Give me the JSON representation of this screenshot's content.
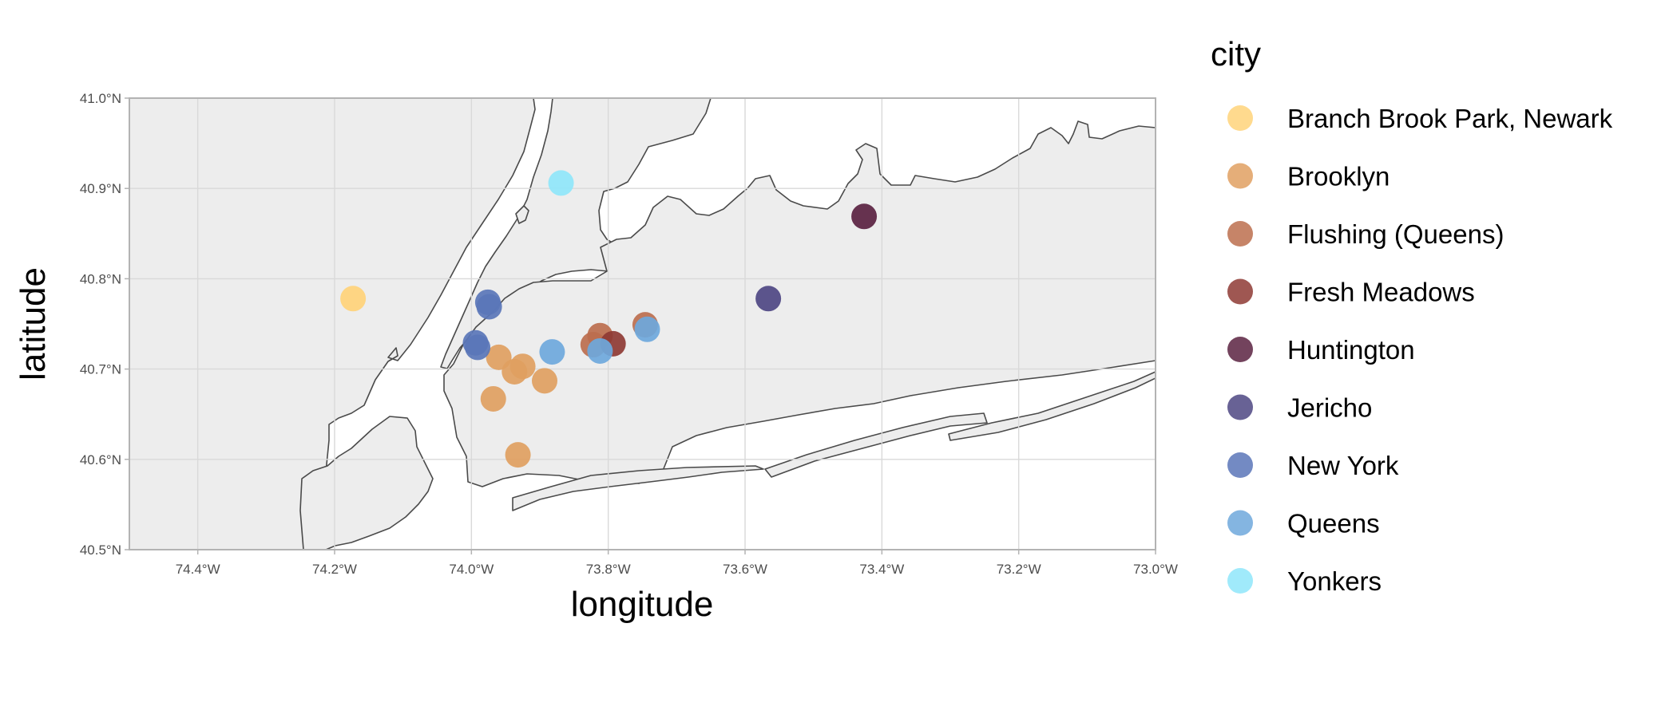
{
  "chart_data": {
    "type": "scatter",
    "xlabel": "longitude",
    "ylabel": "latitude",
    "xlim": [
      -74.5,
      -73.0
    ],
    "ylim": [
      40.5,
      41.0
    ],
    "x_ticks": [
      {
        "value": -74.4,
        "label": "74.4°W"
      },
      {
        "value": -74.2,
        "label": "74.2°W"
      },
      {
        "value": -74.0,
        "label": "74.0°W"
      },
      {
        "value": -73.8,
        "label": "73.8°W"
      },
      {
        "value": -73.6,
        "label": "73.6°W"
      },
      {
        "value": -73.4,
        "label": "73.4°W"
      },
      {
        "value": -73.2,
        "label": "73.2°W"
      },
      {
        "value": -73.0,
        "label": "73.0°W"
      }
    ],
    "y_ticks": [
      {
        "value": 41.0,
        "label": "41.0°N"
      },
      {
        "value": 40.9,
        "label": "40.9°N"
      },
      {
        "value": 40.8,
        "label": "40.8°N"
      },
      {
        "value": 40.7,
        "label": "40.7°N"
      },
      {
        "value": 40.6,
        "label": "40.6°N"
      },
      {
        "value": 40.5,
        "label": "40.5°N"
      }
    ],
    "grid": true,
    "legend": {
      "title": "city",
      "position": "right"
    },
    "series": [
      {
        "name": "Branch Brook Park, Newark",
        "color": "#FFD37A",
        "points": [
          {
            "x": -74.173,
            "y": 40.778
          }
        ]
      },
      {
        "name": "Brooklyn",
        "color": "#E0A061",
        "points": [
          {
            "x": -73.96,
            "y": 40.713
          },
          {
            "x": -73.937,
            "y": 40.697
          },
          {
            "x": -73.925,
            "y": 40.703
          },
          {
            "x": -73.893,
            "y": 40.687
          },
          {
            "x": -73.968,
            "y": 40.667
          },
          {
            "x": -73.932,
            "y": 40.605
          }
        ]
      },
      {
        "name": "Flushing (Queens)",
        "color": "#BC6E4E",
        "points": [
          {
            "x": -73.812,
            "y": 40.737
          },
          {
            "x": -73.822,
            "y": 40.727
          },
          {
            "x": -73.746,
            "y": 40.749
          }
        ]
      },
      {
        "name": "Fresh Meadows",
        "color": "#8E3A34",
        "points": [
          {
            "x": -73.793,
            "y": 40.728
          }
        ]
      },
      {
        "name": "Huntington",
        "color": "#5A2241",
        "points": [
          {
            "x": -73.426,
            "y": 40.869
          }
        ]
      },
      {
        "name": "Jericho",
        "color": "#4E4683",
        "points": [
          {
            "x": -73.566,
            "y": 40.778
          }
        ]
      },
      {
        "name": "New York",
        "color": "#5A76B8",
        "points": [
          {
            "x": -73.976,
            "y": 40.774
          },
          {
            "x": -73.974,
            "y": 40.769
          },
          {
            "x": -73.994,
            "y": 40.729
          },
          {
            "x": -73.991,
            "y": 40.724
          }
        ]
      },
      {
        "name": "Queens",
        "color": "#6EA8DC",
        "points": [
          {
            "x": -73.882,
            "y": 40.719
          },
          {
            "x": -73.812,
            "y": 40.72
          },
          {
            "x": -73.743,
            "y": 40.744
          }
        ]
      },
      {
        "name": "Yonkers",
        "color": "#8FE6FA",
        "points": [
          {
            "x": -73.869,
            "y": 40.906
          }
        ]
      }
    ]
  }
}
